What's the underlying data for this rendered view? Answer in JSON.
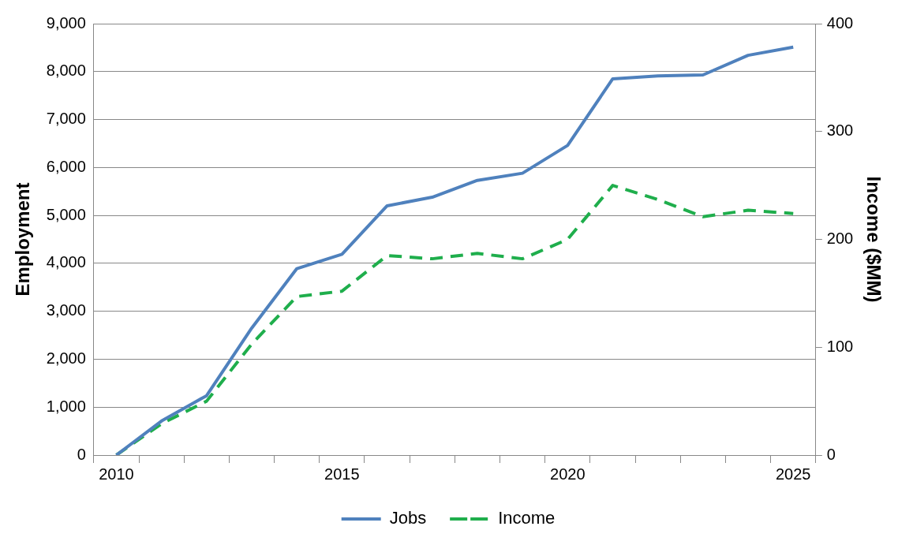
{
  "chart_data": {
    "type": "line",
    "ylabel": "Employment",
    "y2label": "Income ($MM)",
    "categories": [
      "2010",
      null,
      null,
      null,
      null,
      "2015",
      null,
      null,
      null,
      null,
      "2020",
      null,
      null,
      null,
      null,
      "2025"
    ],
    "series": [
      {
        "name": "Jobs",
        "color": "#4f81bd",
        "line_style": "solid",
        "values": [
          0,
          710,
          1240,
          2650,
          3890,
          4190,
          5200,
          5380,
          5730,
          5880,
          6460,
          7850,
          7910,
          7930,
          8340,
          8510
        ]
      },
      {
        "name": "Income",
        "color": "#1fae4c",
        "line_style": "dashed",
        "axis": "y2",
        "values": [
          0,
          29,
          50,
          103,
          147,
          152,
          185,
          182,
          187,
          182,
          200,
          250,
          237,
          221,
          227,
          224
        ]
      }
    ],
    "ylim": [
      0,
      9000
    ],
    "yticks": [
      0,
      {
        "value": 1000,
        "label": "1,000"
      },
      {
        "value": 2000,
        "label": "2,000"
      },
      {
        "value": 3000,
        "label": "3,000"
      },
      {
        "value": 4000,
        "label": "4,000"
      },
      {
        "value": 5000,
        "label": "5,000"
      },
      {
        "value": 6000,
        "label": "6,000"
      },
      {
        "value": 7000,
        "label": "7,000"
      },
      {
        "value": 8000,
        "label": "8,000"
      },
      {
        "value": 9000,
        "label": "9,000"
      }
    ],
    "y2lim": [
      0,
      400
    ],
    "y2ticks": [
      0,
      100,
      200,
      300,
      400
    ],
    "grid": "y",
    "legend": "bottom"
  }
}
